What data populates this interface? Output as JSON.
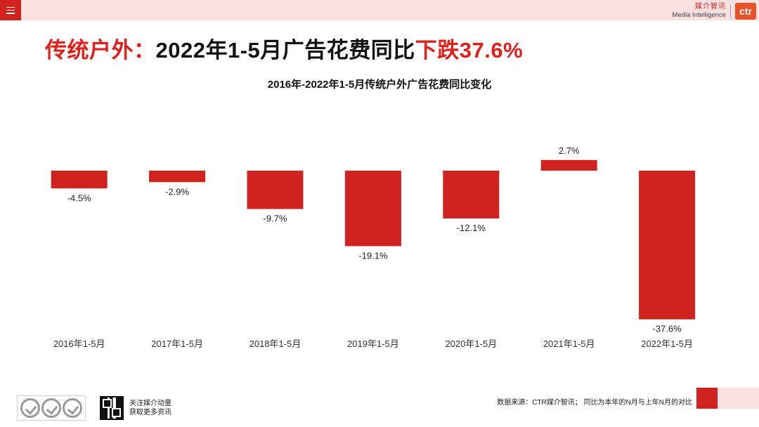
{
  "header": {
    "menu_icon": "menu-icon",
    "brand_cn": "媒介智讯",
    "brand_en": "Media Intelligence",
    "logo_text": "ctr"
  },
  "headline": {
    "part1": "传统户外：",
    "part2": "2022年1-5月广告花费同比",
    "part3": "下跌37.6%"
  },
  "chart_data": {
    "type": "bar",
    "title": "2016年-2022年1-5月传统户外广告花费同比变化",
    "categories": [
      "2016年1-5月",
      "2017年1-5月",
      "2018年1-5月",
      "2019年1-5月",
      "2020年1-5月",
      "2021年1-5月",
      "2022年1-5月"
    ],
    "values": [
      -4.5,
      -2.9,
      -9.7,
      -19.1,
      -12.1,
      2.7,
      -37.6
    ],
    "value_labels": [
      "-4.5%",
      "-2.9%",
      "-9.7%",
      "-19.1%",
      "-12.1%",
      "2.7%",
      "-37.6%"
    ],
    "unit": "%",
    "xlabel": "",
    "ylabel": "",
    "ylim": [
      -40,
      5
    ],
    "color": "#d0231f",
    "grid": false
  },
  "footer": {
    "follow_line1": "关注媒介动量",
    "follow_line2": "获取更多资讯",
    "source": "数据来源：CTR媒介智讯；  同比为本年的N月与上年N月的对比"
  },
  "colors": {
    "accent": "#d0231f",
    "headline_red": "#e0201b",
    "band": "#fbe0e0"
  }
}
